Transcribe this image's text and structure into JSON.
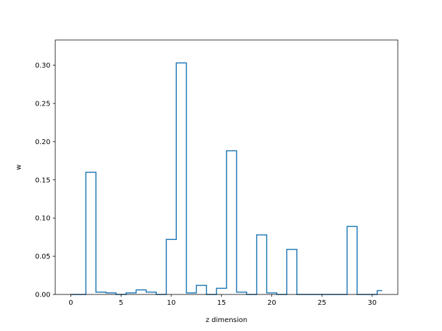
{
  "chart_data": {
    "type": "step",
    "xlabel": "z dimension",
    "ylabel": "w",
    "xlim": [
      -1.55,
      32.55
    ],
    "ylim": [
      0,
      0.333
    ],
    "xticks": [
      0,
      5,
      10,
      15,
      20,
      25,
      30
    ],
    "xtick_labels": [
      "0",
      "5",
      "10",
      "15",
      "20",
      "25",
      "30"
    ],
    "yticks": [
      0.0,
      0.05,
      0.1,
      0.15,
      0.2,
      0.25,
      0.3
    ],
    "ytick_labels": [
      "0.00",
      "0.05",
      "0.10",
      "0.15",
      "0.20",
      "0.25",
      "0.30"
    ],
    "grid": false,
    "step_where": "mid",
    "line_color": "#1f77b4",
    "x": [
      0,
      1,
      2,
      3,
      4,
      5,
      6,
      7,
      8,
      9,
      10,
      11,
      12,
      13,
      14,
      15,
      16,
      17,
      18,
      19,
      20,
      21,
      22,
      23,
      24,
      25,
      26,
      27,
      28,
      29,
      30,
      31
    ],
    "y": [
      0.0,
      0.0,
      0.16,
      0.003,
      0.002,
      0.0,
      0.002,
      0.006,
      0.003,
      0.0,
      0.072,
      0.303,
      0.002,
      0.012,
      0.0,
      0.008,
      0.188,
      0.003,
      0.0,
      0.078,
      0.002,
      0.0,
      0.059,
      0.0,
      0.0,
      0.0,
      0.0,
      0.0,
      0.089,
      0.0,
      0.0,
      0.005
    ]
  }
}
